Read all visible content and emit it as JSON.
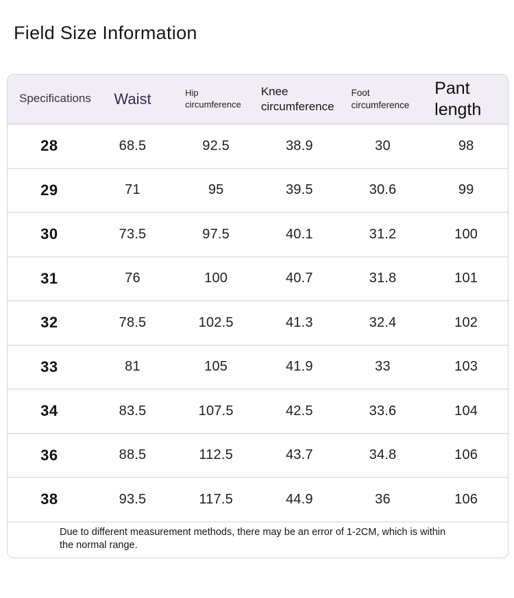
{
  "page": {
    "title": "Field Size Information"
  },
  "colors": {
    "header_bg": "#f0eef4",
    "waist_header_text": "#2e2c4e",
    "row_divider": "#e6e6ea",
    "table_border": "#d5d5da",
    "text": "#1e1e1e"
  },
  "table": {
    "columns": [
      {
        "key": "specifications",
        "label": "Specifications"
      },
      {
        "key": "waist",
        "label": "Waist"
      },
      {
        "key": "hip",
        "label": "Hip circumference"
      },
      {
        "key": "knee",
        "label": "Knee circumference"
      },
      {
        "key": "foot",
        "label": "Foot circumference"
      },
      {
        "key": "pant",
        "label": "Pant length"
      }
    ],
    "rows": [
      [
        "28",
        "68.5",
        "92.5",
        "38.9",
        "30",
        "98"
      ],
      [
        "29",
        "71",
        "95",
        "39.5",
        "30.6",
        "99"
      ],
      [
        "30",
        "73.5",
        "97.5",
        "40.1",
        "31.2",
        "100"
      ],
      [
        "31",
        "76",
        "100",
        "40.7",
        "31.8",
        "101"
      ],
      [
        "32",
        "78.5",
        "102.5",
        "41.3",
        "32.4",
        "102"
      ],
      [
        "33",
        "81",
        "105",
        "41.9",
        "33",
        "103"
      ],
      [
        "34",
        "83.5",
        "107.5",
        "42.5",
        "33.6",
        "104"
      ],
      [
        "36",
        "88.5",
        "112.5",
        "43.7",
        "34.8",
        "106"
      ],
      [
        "38",
        "93.5",
        "117.5",
        "44.9",
        "36",
        "106"
      ]
    ],
    "note": "Due to different measurement methods, there may be an error of 1-2CM, which is within the normal range."
  },
  "chart_data": {
    "type": "table",
    "title": "Field Size Information",
    "columns": [
      "Specifications",
      "Waist",
      "Hip circumference",
      "Knee circumference",
      "Foot circumference",
      "Pant length"
    ],
    "rows": [
      [
        "28",
        68.5,
        92.5,
        38.9,
        30,
        98
      ],
      [
        "29",
        71,
        95,
        39.5,
        30.6,
        99
      ],
      [
        "30",
        73.5,
        97.5,
        40.1,
        31.2,
        100
      ],
      [
        "31",
        76,
        100,
        40.7,
        31.8,
        101
      ],
      [
        "32",
        78.5,
        102.5,
        41.3,
        32.4,
        102
      ],
      [
        "33",
        81,
        105,
        41.9,
        33,
        103
      ],
      [
        "34",
        83.5,
        107.5,
        42.5,
        33.6,
        104
      ],
      [
        "36",
        88.5,
        112.5,
        43.7,
        34.8,
        106
      ],
      [
        "38",
        93.5,
        117.5,
        44.9,
        36,
        106
      ]
    ],
    "annotations": [
      "Due to different measurement methods, there may be an error of 1-2CM, which is within the normal range."
    ]
  }
}
